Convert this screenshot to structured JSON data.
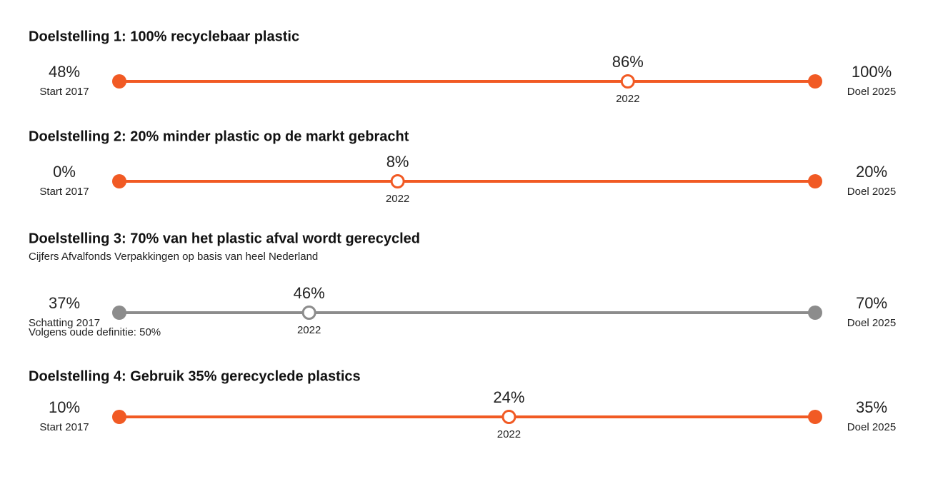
{
  "chart_data": [
    {
      "type": "progress",
      "title": "Doelstelling 1: 100% recyclebaar plastic",
      "categories": [
        "Start 2017",
        "2022",
        "Doel 2025"
      ],
      "values": [
        48,
        86,
        100
      ],
      "value_labels": [
        "48%",
        "86%",
        "100%"
      ],
      "color": "#f15a24"
    },
    {
      "type": "progress",
      "title": "Doelstelling 2: 20% minder plastic op de markt gebracht",
      "categories": [
        "Start 2017",
        "2022",
        "Doel 2025"
      ],
      "values": [
        0,
        8,
        20
      ],
      "value_labels": [
        "0%",
        "8%",
        "20%"
      ],
      "color": "#f15a24"
    },
    {
      "type": "progress",
      "title": "Doelstelling 3: 70% van het plastic afval wordt gerecycled",
      "subtitle": "Cijfers Afvalfonds Verpakkingen op basis van heel Nederland",
      "categories": [
        "Schatting 2017",
        "2022",
        "Doel 2025"
      ],
      "values": [
        37,
        46,
        70
      ],
      "value_labels": [
        "37%",
        "46%",
        "70%"
      ],
      "note": "Volgens oude definitie: 50%",
      "color": "#8c8c8c"
    },
    {
      "type": "progress",
      "title": "Doelstelling 4: Gebruik 35% gerecyclede plastics",
      "categories": [
        "Start 2017",
        "2022",
        "Doel 2025"
      ],
      "values": [
        10,
        24,
        35
      ],
      "value_labels": [
        "10%",
        "24%",
        "35%"
      ],
      "color": "#f15a24"
    }
  ]
}
